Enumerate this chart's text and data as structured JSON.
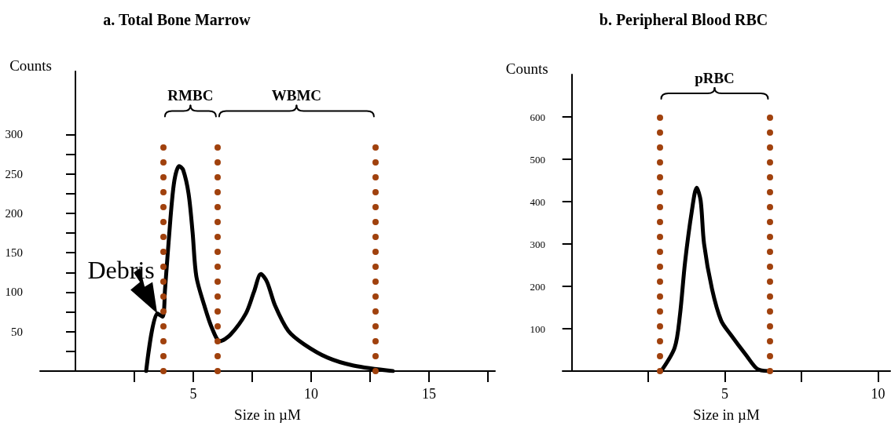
{
  "chart_data": [
    {
      "type": "line",
      "title": "a. Total Bone Marrow",
      "xlabel": "Size in µM",
      "ylabel": "Counts",
      "series": [
        {
          "color": "#000000",
          "x": [
            3.0,
            3.47,
            3.7,
            3.8,
            4.03,
            4.2,
            4.4,
            4.57,
            4.8,
            4.97,
            5.13,
            5.47,
            5.8,
            6.13,
            6.57,
            7.23,
            7.57,
            7.87,
            8.13,
            8.47,
            9.03,
            9.7,
            10.7,
            11.8,
            13.47
          ],
          "values": [
            0,
            73,
            69,
            103,
            193,
            242,
            260,
            255,
            225,
            176,
            120,
            83,
            54,
            38,
            46,
            73,
            100,
            123,
            113,
            83,
            51,
            34,
            17,
            7,
            0
          ]
        }
      ],
      "xlim": [
        -1.5,
        17.8
      ],
      "ylim": [
        0,
        380
      ],
      "xticks": [
        {
          "value": 2.5,
          "label": null
        },
        5,
        {
          "value": 7.5,
          "label": null
        },
        10,
        {
          "value": 12.5,
          "label": null
        },
        15,
        {
          "value": 17.5,
          "label": null
        }
      ],
      "yticks": [
        {
          "value": 25,
          "label": null
        },
        50,
        {
          "value": 75,
          "label": null
        },
        100,
        {
          "value": 125,
          "label": null
        },
        150,
        {
          "value": 175,
          "label": null
        },
        200,
        {
          "value": 225,
          "label": null
        },
        250,
        {
          "value": 275,
          "label": null
        },
        300
      ],
      "ref_lines": [
        {
          "axis": "x",
          "value": 3.73,
          "color": "#a0410d",
          "line_style": "dotted"
        },
        {
          "axis": "x",
          "value": 6.03,
          "color": "#a0410d",
          "line_style": "dotted"
        },
        {
          "axis": "x",
          "value": 12.73,
          "color": "#a0410d",
          "line_style": "dotted"
        }
      ],
      "annotations": [
        "RMBC",
        "WBMC",
        {
          "text": "Debris",
          "x": 3.47,
          "y": 73
        }
      ],
      "marker": "none",
      "line_style": "solid"
    },
    {
      "type": "line",
      "title": "b. Peripheral Blood RBC",
      "xlabel": "Size in µM",
      "ylabel": "Counts",
      "series": [
        {
          "color": "#000000",
          "x": [
            2.92,
            3.36,
            3.53,
            3.7,
            3.92,
            4.08,
            4.21,
            4.32,
            4.58,
            4.88,
            5.19,
            5.71,
            6.06,
            6.41
          ],
          "values": [
            0,
            55,
            130,
            257,
            377,
            433,
            402,
            301,
            194,
            119,
            86,
            36,
            5,
            0
          ]
        }
      ],
      "xlim": [
        -0.3,
        10.4
      ],
      "ylim": [
        0,
        700
      ],
      "xticks": [
        {
          "value": 2.5,
          "label": null
        },
        5,
        {
          "value": 7.5,
          "label": null
        },
        10
      ],
      "yticks": [
        100,
        200,
        300,
        400,
        500,
        600
      ],
      "ref_lines": [
        {
          "axis": "x",
          "value": 2.87,
          "color": "#a0410d",
          "line_style": "dotted"
        },
        {
          "axis": "x",
          "value": 6.46,
          "color": "#a0410d",
          "line_style": "dotted"
        }
      ],
      "annotations": [
        "pRBC"
      ],
      "marker": "none",
      "line_style": "solid"
    }
  ]
}
